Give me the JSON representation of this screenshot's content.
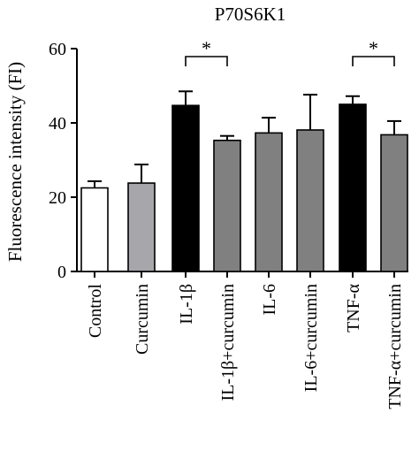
{
  "chart_data": {
    "type": "bar",
    "title": "P70S6K1",
    "ylabel": "Fluorescence intensity (FI)",
    "xlabel": "",
    "ylim": [
      0,
      60
    ],
    "yticks": [
      0,
      20,
      40,
      60
    ],
    "grid": false,
    "categories": [
      "Control",
      "Curcumin",
      "IL-1β",
      "IL-1β+curcumin",
      "IL-6",
      "IL-6+curcumin",
      "TNF-α",
      "TNF-α+curcumin"
    ],
    "values": [
      22.5,
      23.8,
      44.7,
      35.3,
      37.3,
      38.1,
      45.0,
      36.8
    ],
    "errors": [
      1.8,
      5.0,
      3.8,
      1.2,
      4.1,
      9.5,
      2.2,
      3.7
    ],
    "colors": [
      "#ffffff",
      "#a6a6ab",
      "#000000",
      "#808080",
      "#808080",
      "#808080",
      "#000000",
      "#808080"
    ],
    "significance": [
      {
        "from": 2,
        "to": 3,
        "label": "*"
      },
      {
        "from": 6,
        "to": 7,
        "label": "*"
      }
    ]
  }
}
